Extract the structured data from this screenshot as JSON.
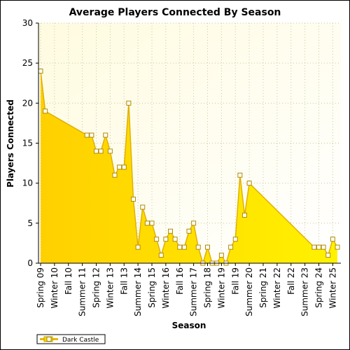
{
  "chart_data": {
    "type": "area",
    "title": "Average Players Connected By Season",
    "xlabel": "Season",
    "ylabel": "Players Connected",
    "ylim": [
      0,
      30
    ],
    "yticks": [
      0,
      5,
      10,
      15,
      20,
      25,
      30
    ],
    "grid": true,
    "legend_position": "bottom-left",
    "x_tick_labels": [
      "Spring 09",
      "Winter 10",
      "Fall 10",
      "Summer 11",
      "Spring 12",
      "Winter 13",
      "Fall 13",
      "Summer 14",
      "Spring 15",
      "Winter 16",
      "Fall 16",
      "Summer 17",
      "Spring 18",
      "Winter 19",
      "Fall 19",
      "Summer 20",
      "Spring 21",
      "Winter 22",
      "Fall 22",
      "Summer 23",
      "Spring 24",
      "Winter 25"
    ],
    "x_tick_positions": [
      0,
      3,
      6,
      9,
      12,
      15,
      18,
      21,
      24,
      27,
      30,
      33,
      36,
      39,
      42,
      45,
      48,
      51,
      54,
      57,
      60,
      63
    ],
    "series": [
      {
        "name": "Dark Castle",
        "color": "#ffd700",
        "points": [
          [
            0,
            24
          ],
          [
            1,
            19
          ],
          [
            10,
            16
          ],
          [
            11,
            16
          ],
          [
            12,
            14
          ],
          [
            13,
            14
          ],
          [
            14,
            16
          ],
          [
            15,
            14
          ],
          [
            16,
            11
          ],
          [
            17,
            12
          ],
          [
            18,
            12
          ],
          [
            19,
            20
          ],
          [
            20,
            8
          ],
          [
            21,
            2
          ],
          [
            22,
            7
          ],
          [
            23,
            5
          ],
          [
            24,
            5
          ],
          [
            25,
            3
          ],
          [
            26,
            1
          ],
          [
            27,
            3
          ],
          [
            28,
            4
          ],
          [
            29,
            3
          ],
          [
            30,
            2
          ],
          [
            31,
            2
          ],
          [
            32,
            4
          ],
          [
            33,
            5
          ],
          [
            34,
            2
          ],
          [
            35,
            0
          ],
          [
            36,
            2
          ],
          [
            37,
            0
          ],
          [
            38,
            0
          ],
          [
            39,
            1
          ],
          [
            40,
            0
          ],
          [
            41,
            2
          ],
          [
            42,
            3
          ],
          [
            43,
            11
          ],
          [
            44,
            6
          ],
          [
            45,
            10
          ],
          [
            59,
            2
          ],
          [
            60,
            2
          ],
          [
            61,
            2
          ],
          [
            62,
            1
          ],
          [
            63,
            3
          ],
          [
            64,
            2
          ]
        ]
      }
    ],
    "x_max": 64
  }
}
